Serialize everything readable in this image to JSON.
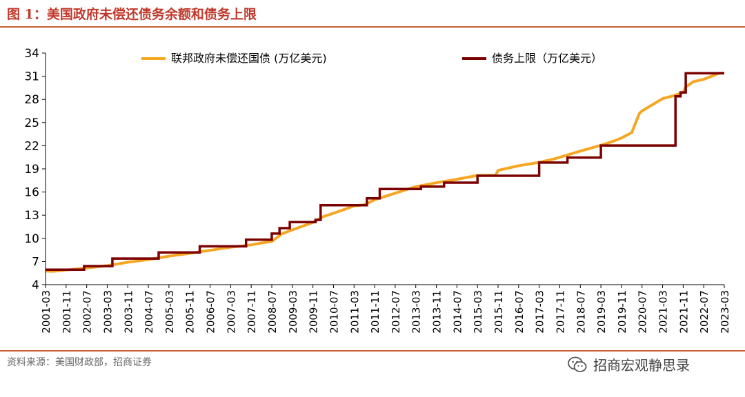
{
  "title": "图 1：美国政府未偿还债务余额和债务上限",
  "source": "资料来源：美国财政部，招商证券",
  "watermark": "招商宏观静思录",
  "colors": {
    "debt": "#f5a623",
    "ceiling": "#7b0000",
    "title": "#c0392b",
    "rule": "#c8603a"
  },
  "chart_data": {
    "type": "line",
    "title": "",
    "xlabel": "",
    "ylabel": "",
    "ylim": [
      4,
      34
    ],
    "yticks": [
      4,
      7,
      10,
      13,
      16,
      19,
      22,
      25,
      28,
      31,
      34
    ],
    "x_tick_labels": [
      "2001-03",
      "2001-11",
      "2002-07",
      "2003-03",
      "2003-11",
      "2004-07",
      "2005-03",
      "2005-11",
      "2006-07",
      "2007-03",
      "2007-11",
      "2008-07",
      "2009-03",
      "2009-11",
      "2010-07",
      "2011-03",
      "2011-11",
      "2012-07",
      "2013-03",
      "2013-11",
      "2014-07",
      "2015-03",
      "2015-11",
      "2016-07",
      "2017-03",
      "2017-11",
      "2018-07",
      "2019-03",
      "2019-11",
      "2020-07",
      "2021-03",
      "2021-11",
      "2022-07",
      "2023-03"
    ],
    "legend_position": "top",
    "series": [
      {
        "name": "联邦政府未偿还国债 (万亿美元)",
        "color": "#f5a623",
        "points": [
          [
            "2001-03",
            5.77
          ],
          [
            "2001-06",
            5.73
          ],
          [
            "2001-11",
            5.9
          ],
          [
            "2002-07",
            6.15
          ],
          [
            "2003-03",
            6.46
          ],
          [
            "2003-11",
            6.9
          ],
          [
            "2004-07",
            7.25
          ],
          [
            "2005-03",
            7.7
          ],
          [
            "2005-11",
            8.05
          ],
          [
            "2006-07",
            8.45
          ],
          [
            "2007-03",
            8.85
          ],
          [
            "2007-11",
            9.15
          ],
          [
            "2008-03",
            9.4
          ],
          [
            "2008-07",
            9.6
          ],
          [
            "2008-11",
            10.6
          ],
          [
            "2009-03",
            11.1
          ],
          [
            "2009-11",
            12.05
          ],
          [
            "2010-03",
            12.8
          ],
          [
            "2010-07",
            13.25
          ],
          [
            "2011-03",
            14.2
          ],
          [
            "2011-07",
            14.34
          ],
          [
            "2011-11",
            15.0
          ],
          [
            "2012-07",
            15.85
          ],
          [
            "2013-03",
            16.7
          ],
          [
            "2013-11",
            17.2
          ],
          [
            "2014-07",
            17.65
          ],
          [
            "2015-03",
            18.15
          ],
          [
            "2015-10",
            18.15
          ],
          [
            "2015-11",
            18.8
          ],
          [
            "2016-07",
            19.4
          ],
          [
            "2017-03",
            19.85
          ],
          [
            "2017-09",
            20.3
          ],
          [
            "2017-11",
            20.5
          ],
          [
            "2018-07",
            21.3
          ],
          [
            "2019-03",
            22.05
          ],
          [
            "2019-08",
            22.6
          ],
          [
            "2019-11",
            23.0
          ],
          [
            "2020-03",
            23.7
          ],
          [
            "2020-06",
            26.2
          ],
          [
            "2020-07",
            26.5
          ],
          [
            "2021-03",
            28.1
          ],
          [
            "2021-07",
            28.45
          ],
          [
            "2021-11",
            28.9
          ],
          [
            "2021-12",
            29.6
          ],
          [
            "2022-03",
            30.3
          ],
          [
            "2022-07",
            30.6
          ],
          [
            "2023-01",
            31.4
          ],
          [
            "2023-03",
            31.4
          ]
        ]
      },
      {
        "name": "债务上限（万亿美元）",
        "color": "#7b0000",
        "steps": [
          [
            "2001-03",
            5.95
          ],
          [
            "2002-06",
            6.4
          ],
          [
            "2003-05",
            7.38
          ],
          [
            "2004-11",
            8.18
          ],
          [
            "2006-03",
            8.96
          ],
          [
            "2007-09",
            9.82
          ],
          [
            "2008-07",
            10.62
          ],
          [
            "2008-10",
            11.32
          ],
          [
            "2009-02",
            12.1
          ],
          [
            "2009-12",
            12.39
          ],
          [
            "2010-02",
            14.29
          ],
          [
            "2011-08",
            15.19
          ],
          [
            "2012-01",
            16.39
          ],
          [
            "2013-05",
            16.7
          ],
          [
            "2014-02",
            17.21
          ],
          [
            "2015-03",
            18.11
          ],
          [
            "2017-03",
            19.81
          ],
          [
            "2018-02",
            20.46
          ],
          [
            "2019-03",
            22.03
          ],
          [
            "2021-08",
            28.4
          ],
          [
            "2021-10",
            28.9
          ],
          [
            "2021-12",
            31.38
          ],
          [
            "2023-03",
            31.38
          ]
        ]
      }
    ]
  }
}
